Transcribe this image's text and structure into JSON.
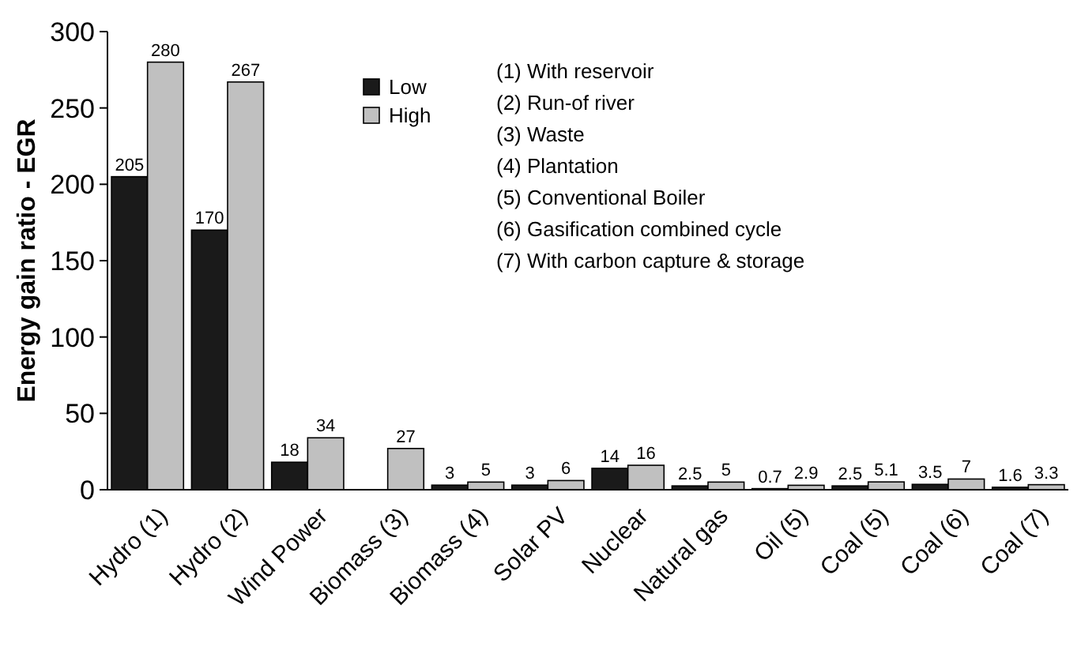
{
  "chart_data": {
    "type": "bar",
    "ylabel": "Energy gain ratio - EGR",
    "categories": [
      "Hydro (1)",
      "Hydro (2)",
      "Wind Power",
      "Biomass (3)",
      "Biomass (4)",
      "Solar PV",
      "Nuclear",
      "Natural gas",
      "Oil (5)",
      "Coal (5)",
      "Coal (6)",
      "Coal (7)"
    ],
    "series": [
      {
        "name": "Low",
        "color": "#1a1a1a",
        "values": [
          205,
          170,
          18,
          null,
          3,
          3,
          14,
          2.5,
          0.7,
          2.5,
          3.5,
          1.6
        ]
      },
      {
        "name": "High",
        "color": "#c0c0c0",
        "values": [
          280,
          267,
          34,
          27,
          5,
          6,
          16,
          5,
          2.9,
          5.1,
          7,
          3.3
        ]
      }
    ],
    "ylim": [
      0,
      300
    ],
    "yticks": [
      0,
      50,
      100,
      150,
      200,
      250,
      300
    ],
    "data_labels": true,
    "legend": "top",
    "grid": false,
    "annotations": [
      "(1) With reservoir",
      "(2) Run-of river",
      "(3) Waste",
      "(4) Plantation",
      "(5) Conventional Boiler",
      "(6) Gasification combined cycle",
      "(7) With carbon capture & storage"
    ]
  }
}
